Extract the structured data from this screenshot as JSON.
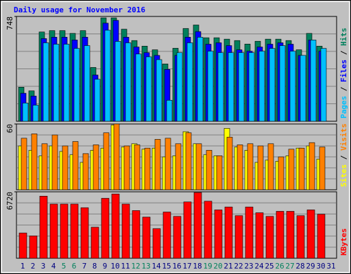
{
  "title": "Daily usage for November 2016",
  "legend_separator": " / ",
  "chart_data": [
    {
      "type": "bar",
      "ylim": [
        0,
        748
      ],
      "yticks": [
        748
      ],
      "series": [
        {
          "name": "Hits",
          "color": "#00805c",
          "values": [
            243,
            217,
            637,
            647,
            647,
            627,
            647,
            384,
            738,
            738,
            657,
            576,
            536,
            510,
            409,
            521,
            662,
            687,
            596,
            596,
            586,
            576,
            551,
            571,
            586,
            586,
            576,
            510,
            627,
            536,
            null
          ]
        },
        {
          "name": "Files",
          "color": "#0000ff",
          "values": [
            200,
            180,
            590,
            600,
            600,
            580,
            600,
            330,
            700,
            720,
            600,
            530,
            490,
            470,
            370,
            470,
            600,
            640,
            550,
            560,
            540,
            510,
            500,
            530,
            550,
            560,
            550,
            470,
            580,
            500,
            null
          ]
        },
        {
          "name": "Pages",
          "color": "#00c0ff",
          "values": [
            130,
            115,
            560,
            550,
            550,
            520,
            540,
            300,
            650,
            570,
            560,
            480,
            460,
            440,
            150,
            490,
            560,
            600,
            500,
            490,
            490,
            490,
            490,
            500,
            520,
            540,
            500,
            470,
            580,
            520,
            null
          ]
        }
      ]
    },
    {
      "type": "bar",
      "ylim": [
        0,
        60
      ],
      "yticks": [
        60
      ],
      "series": [
        {
          "name": "Visits",
          "color": "#ff8000",
          "values": [
            47,
            51,
            42,
            50,
            40,
            44,
            33,
            41,
            52,
            60,
            40,
            41,
            38,
            46,
            47,
            42,
            52,
            42,
            36,
            31,
            48,
            41,
            42,
            40,
            42,
            30,
            37,
            38,
            43,
            39,
            null
          ]
        },
        {
          "name": "Sites",
          "color": "#ffff00",
          "values": [
            40,
            36,
            31,
            40,
            35,
            32,
            25,
            36,
            38,
            59,
            39,
            42,
            37,
            38,
            30,
            31,
            53,
            42,
            32,
            31,
            56,
            39,
            36,
            25,
            27,
            26,
            31,
            38,
            40,
            28,
            null
          ]
        }
      ]
    },
    {
      "type": "bar",
      "ylim": [
        0,
        6720
      ],
      "yticks": [
        6720
      ],
      "categories": [
        "1",
        "2",
        "3",
        "4",
        "5",
        "6",
        "7",
        "8",
        "9",
        "10",
        "11",
        "12",
        "13",
        "14",
        "15",
        "16",
        "17",
        "18",
        "19",
        "20",
        "21",
        "22",
        "23",
        "24",
        "25",
        "26",
        "27",
        "28",
        "29",
        "30",
        "31"
      ],
      "category_colors": [
        "#000080",
        "#000080",
        "#000080",
        "#000080",
        "#00805c",
        "#00805c",
        "#000080",
        "#000080",
        "#000080",
        "#000080",
        "#000080",
        "#00805c",
        "#00805c",
        "#000080",
        "#000080",
        "#000080",
        "#000080",
        "#000080",
        "#00805c",
        "#00805c",
        "#000080",
        "#000080",
        "#000080",
        "#000080",
        "#000080",
        "#00805c",
        "#00805c",
        "#000080",
        "#000080",
        "#000080",
        "#000080"
      ],
      "series": [
        {
          "name": "KBytes",
          "color": "#ff0000",
          "values": [
            2557,
            2264,
            6282,
            5478,
            5478,
            5478,
            5113,
            3141,
            6063,
            6501,
            5478,
            4821,
            4163,
            2995,
            4675,
            4237,
            5697,
            6647,
            5770,
            4894,
            5186,
            4310,
            5186,
            4602,
            4237,
            4748,
            4748,
            4310,
            4894,
            4456,
            null
          ]
        }
      ]
    }
  ]
}
